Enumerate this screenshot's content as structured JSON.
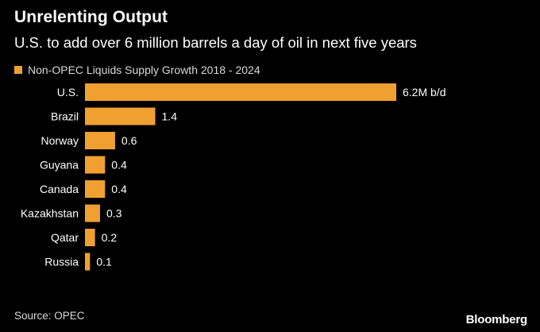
{
  "header": {
    "title": "Unrelenting Output",
    "subtitle": "U.S. to add over 6 million barrels a day of oil in next five years"
  },
  "colors": {
    "background": "#000000",
    "bar": "#f0a030",
    "text": "#ffffff",
    "muted_text": "#d9d9d9"
  },
  "chart_data": {
    "type": "bar",
    "orientation": "horizontal",
    "title": "Unrelenting Output",
    "subtitle": "U.S. to add over 6 million barrels a day of oil in next five years",
    "legend": [
      "Non-OPEC Liquids Supply Growth 2018 - 2024"
    ],
    "legend_position": "top-left",
    "categories": [
      "U.S.",
      "Brazil",
      "Norway",
      "Guyana",
      "Canada",
      "Kazakhstan",
      "Qatar",
      "Russia"
    ],
    "values": [
      6.2,
      1.4,
      0.6,
      0.4,
      0.4,
      0.3,
      0.2,
      0.1
    ],
    "data_labels": [
      "6.2M b/d",
      "1.4",
      "0.6",
      "0.4",
      "0.4",
      "0.3",
      "0.2",
      "0.1"
    ],
    "xlim": [
      0,
      6.2
    ],
    "grid": false
  },
  "footer": {
    "source": "Source: OPEC",
    "brand": "Bloomberg"
  }
}
